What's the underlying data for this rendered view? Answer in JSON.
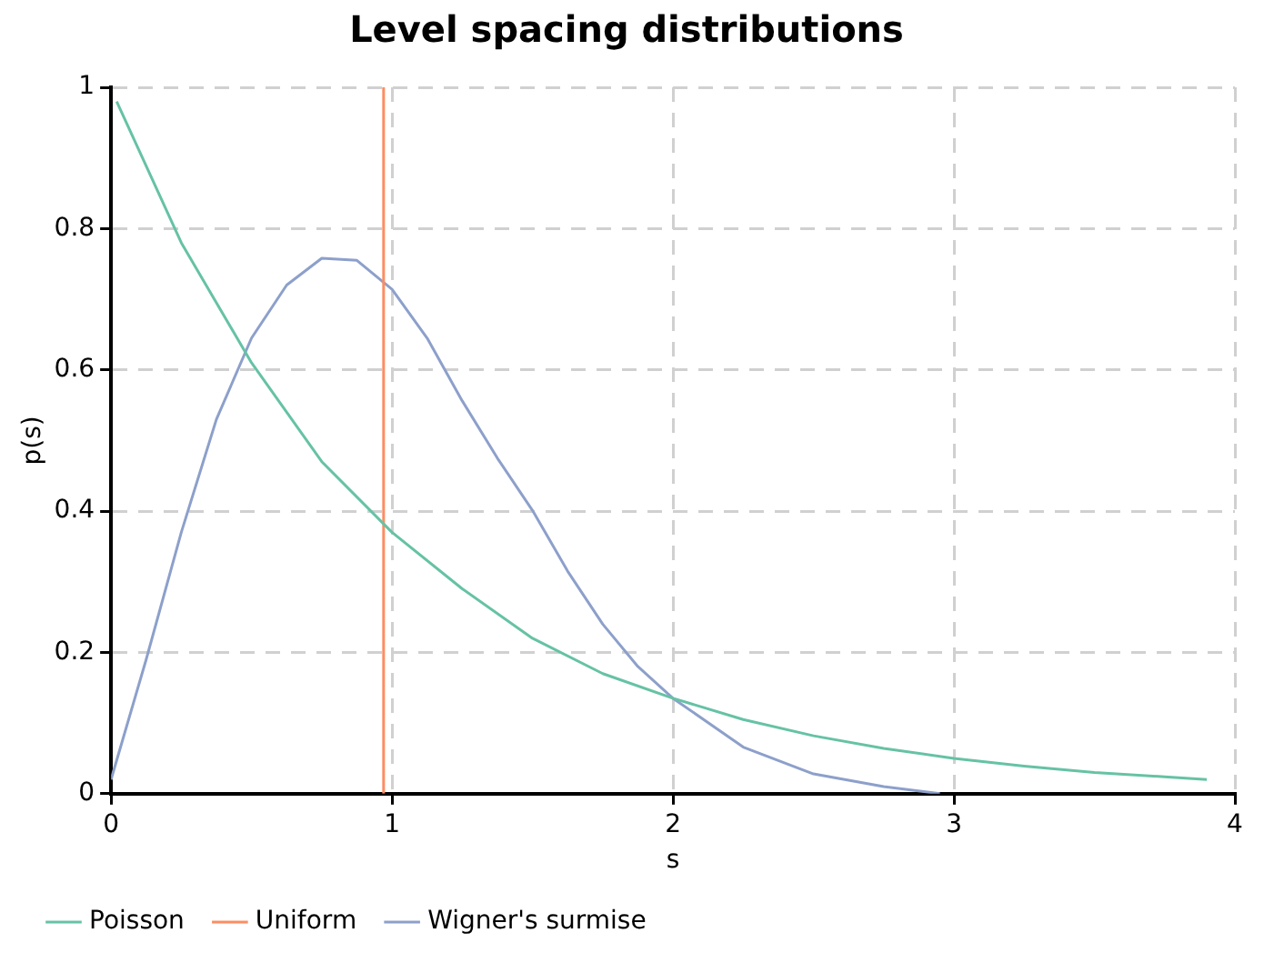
{
  "chart_data": {
    "type": "line",
    "title": "Level spacing distributions",
    "xlabel": "s",
    "ylabel": "p(s)",
    "xlim": [
      0,
      4
    ],
    "ylim": [
      0,
      1
    ],
    "xticks": [
      0,
      1,
      2,
      3,
      4
    ],
    "yticks": [
      0,
      0.2,
      0.4,
      0.6,
      0.8,
      1
    ],
    "grid": true,
    "legend": "bottom left",
    "line_style": "solid",
    "marker": "none",
    "series": [
      {
        "name": "Poisson",
        "color": "#66c2a5",
        "x": [
          0.02,
          0.25,
          0.5,
          0.75,
          1,
          1.25,
          1.5,
          1.75,
          2,
          2.25,
          2.5,
          2.75,
          3,
          3.25,
          3.5,
          3.75,
          3.9
        ],
        "values": [
          0.98,
          0.78,
          0.61,
          0.47,
          0.37,
          0.29,
          0.22,
          0.17,
          0.135,
          0.105,
          0.082,
          0.064,
          0.05,
          0.039,
          0.03,
          0.024,
          0.02
        ]
      },
      {
        "name": "Uniform",
        "color": "#fc8d62",
        "x": [
          0.97,
          0.97
        ],
        "values": [
          0,
          1
        ]
      },
      {
        "name": "Wigner's surmise",
        "color": "#8da0cb",
        "x": [
          0,
          0.125,
          0.25,
          0.375,
          0.5,
          0.625,
          0.75,
          0.875,
          1,
          1.125,
          1.25,
          1.375,
          1.5,
          1.625,
          1.75,
          1.875,
          2,
          2.25,
          2.5,
          2.75,
          2.95
        ],
        "values": [
          0.02,
          0.19,
          0.37,
          0.53,
          0.645,
          0.72,
          0.758,
          0.755,
          0.714,
          0.645,
          0.556,
          0.475,
          0.401,
          0.315,
          0.24,
          0.18,
          0.135,
          0.066,
          0.028,
          0.01,
          0
        ]
      }
    ]
  }
}
